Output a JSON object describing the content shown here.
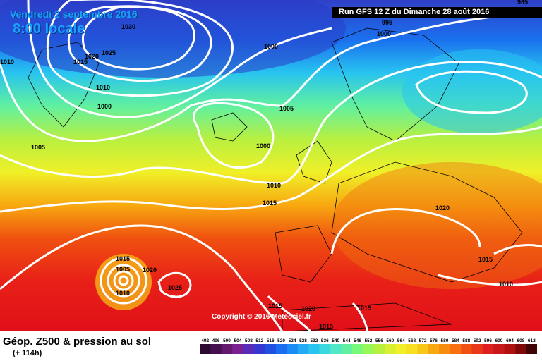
{
  "header": {
    "date": "Vendredi 2 septembre 2016",
    "time": "8:00 locale",
    "run": "Run GFS 12 Z du Dimanche 28 août 2016"
  },
  "copyright": "Copyright © 2016 Meteociel.fr",
  "caption": {
    "title": "Géop. Z500 & pression au sol",
    "lead": "(+ 114h)"
  },
  "legend": {
    "labels": [
      "492",
      "496",
      "500",
      "504",
      "508",
      "512",
      "516",
      "520",
      "524",
      "528",
      "532",
      "536",
      "540",
      "544",
      "548",
      "552",
      "556",
      "560",
      "564",
      "568",
      "572",
      "576",
      "580",
      "584",
      "588",
      "592",
      "596",
      "600",
      "604",
      "608",
      "612"
    ],
    "colors": [
      "#2a0a30",
      "#46104e",
      "#64186e",
      "#7a2090",
      "#5a2bb8",
      "#3636d0",
      "#2050e0",
      "#1a6cf0",
      "#1a8cf5",
      "#22aaf5",
      "#28c4f0",
      "#3cd8e0",
      "#50e8c8",
      "#60f0a0",
      "#78f878",
      "#98f858",
      "#b8f040",
      "#d8f030",
      "#f0f028",
      "#f8e020",
      "#f8c818",
      "#f8a810",
      "#f88c10",
      "#f87010",
      "#f05010",
      "#e83818",
      "#e02020",
      "#c81818",
      "#b01010",
      "#800808",
      "#400404"
    ]
  },
  "isobars": [
    {
      "text": "1030"
    },
    {
      "text": "1025"
    },
    {
      "text": "1020"
    },
    {
      "text": "1015"
    },
    {
      "text": "1010"
    },
    {
      "text": "1000"
    },
    {
      "text": "1005"
    },
    {
      "text": "1010"
    },
    {
      "text": "1000"
    },
    {
      "text": "1005"
    },
    {
      "text": "1000"
    },
    {
      "text": "1010"
    },
    {
      "text": "1015"
    },
    {
      "text": "995"
    },
    {
      "text": "985"
    },
    {
      "text": "1000"
    },
    {
      "text": "1020"
    },
    {
      "text": "1015"
    },
    {
      "text": "1010"
    },
    {
      "text": "1015"
    },
    {
      "text": "1005"
    },
    {
      "text": "1010"
    },
    {
      "text": "1020"
    },
    {
      "text": "1025"
    },
    {
      "text": "1015"
    },
    {
      "text": "1020"
    },
    {
      "text": "1015"
    },
    {
      "text": "1015"
    }
  ]
}
